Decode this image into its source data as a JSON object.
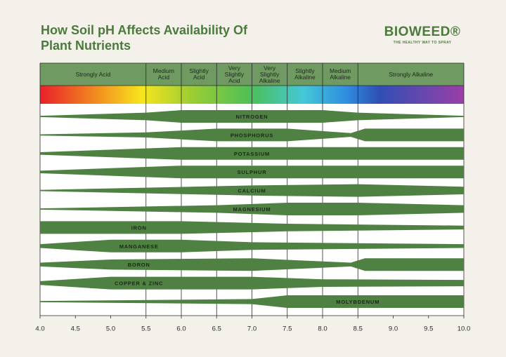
{
  "chart_data": {
    "type": "band",
    "title": "How Soil pH Affects Availability Of Plant Nutrients",
    "brand": "BIOWEED®",
    "tagline": "THE HEALTHY WAY TO SPRAY",
    "color": "#4f8143",
    "xlim": [
      4,
      10
    ],
    "xticks": [
      {
        "value": 4,
        "label": "4.0"
      },
      4.5,
      {
        "value": 5,
        "label": "5.0"
      },
      5.5,
      {
        "value": 6,
        "label": "6.0"
      },
      6.5,
      {
        "value": 7,
        "label": "7.0"
      },
      7.5,
      {
        "value": 8,
        "label": "8.0"
      },
      8.5,
      {
        "value": 9,
        "label": "9.0"
      },
      9.5,
      {
        "value": 10,
        "label": "10.0"
      }
    ],
    "zones": [
      {
        "label": "Strongly Acid",
        "from": 4,
        "to": 5.5
      },
      {
        "label": "Medium Acid",
        "from": 5.5,
        "to": 6
      },
      {
        "label": "Slightly Acid",
        "from": 6,
        "to": 6.5
      },
      {
        "label": "Very Slightly Acid",
        "from": 6.5,
        "to": 7
      },
      {
        "label": "Very Slightly Alkaline",
        "from": 7,
        "to": 7.5
      },
      {
        "label": "Slightly Alkaline",
        "from": 7.5,
        "to": 8
      },
      {
        "label": "Medium Alkaline",
        "from": 8,
        "to": 8.5
      },
      {
        "label": "Strongly Alkaline",
        "from": 8.5,
        "to": 10
      }
    ],
    "series": [
      {
        "name": "NITROGEN",
        "x": [
          4,
          5.5,
          6,
          8,
          8.5,
          10
        ],
        "values": [
          0.1,
          0.6,
          1,
          1,
          0.6,
          0.1
        ]
      },
      {
        "name": "PHOSPHORUS",
        "x": [
          4,
          5.5,
          6.5,
          7.5,
          8.4,
          8.6,
          10
        ],
        "values": [
          0.1,
          0.4,
          1,
          1,
          0.3,
          1,
          1
        ]
      },
      {
        "name": "POTASSIUM",
        "x": [
          4,
          6,
          10
        ],
        "values": [
          0.2,
          1,
          1
        ]
      },
      {
        "name": "SULPHUR",
        "x": [
          4,
          6,
          10
        ],
        "values": [
          0.2,
          1,
          1
        ]
      },
      {
        "name": "CALCIUM",
        "x": [
          4,
          7,
          8.5,
          10
        ],
        "values": [
          0.1,
          0.8,
          1,
          0.6
        ]
      },
      {
        "name": "MAGNESIUM",
        "x": [
          4,
          6.5,
          7.5,
          8.5,
          10
        ],
        "values": [
          0.1,
          0.6,
          1,
          1,
          0.6
        ]
      },
      {
        "name": "IRON",
        "x": [
          4,
          6,
          7.5,
          10
        ],
        "values": [
          1,
          1,
          0.6,
          0.3
        ]
      },
      {
        "name": "MANGANESE",
        "x": [
          4,
          5,
          6,
          7,
          10
        ],
        "values": [
          0.3,
          1,
          1,
          0.6,
          0.3
        ]
      },
      {
        "name": "BORON",
        "x": [
          4,
          5,
          7,
          8.4,
          8.6,
          10
        ],
        "values": [
          0.3,
          0.8,
          1,
          0.3,
          1,
          1
        ]
      },
      {
        "name": "COPPER & ZINC",
        "x": [
          4,
          5,
          7,
          8,
          10
        ],
        "values": [
          0.3,
          1,
          1,
          0.6,
          0.5
        ]
      },
      {
        "name": "MOLYBDENUM",
        "x": [
          4,
          7,
          7.5,
          10
        ],
        "values": [
          0.1,
          0.4,
          1,
          1
        ]
      }
    ]
  }
}
